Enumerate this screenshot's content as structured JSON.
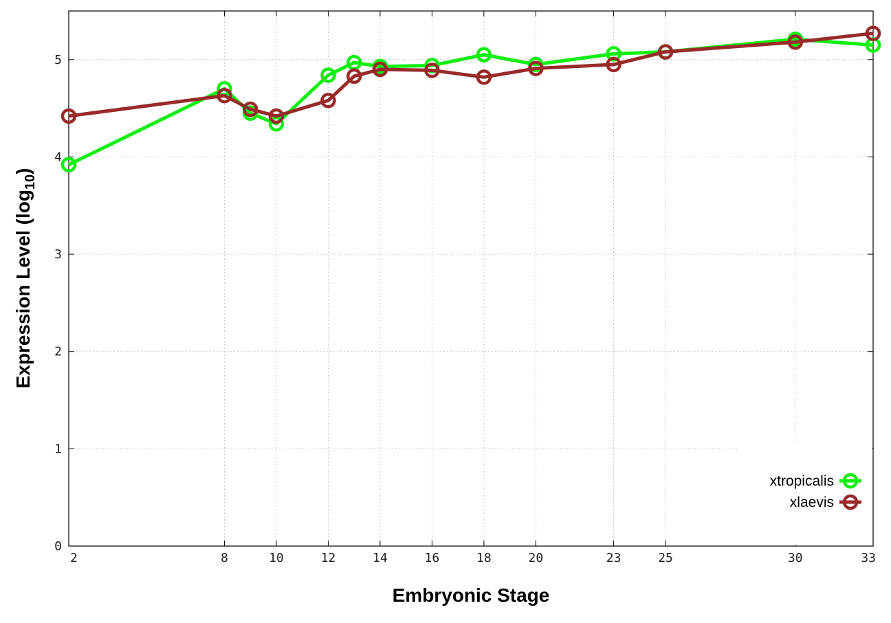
{
  "chart_data": {
    "type": "line",
    "title": "",
    "xlabel": "Embryonic Stage",
    "ylabel": "Expression Level (log",
    "ylabel_sub": "10",
    "ylabel_close": ")",
    "xlim": [
      2,
      33
    ],
    "ylim": [
      0,
      5.5
    ],
    "xticks": [
      2,
      8,
      10,
      12,
      14,
      16,
      18,
      20,
      23,
      25,
      30,
      33
    ],
    "xtick_labels": [
      "2",
      "8",
      "10",
      "12",
      "14",
      "16",
      "18",
      "20",
      "23",
      "25",
      "30",
      "33"
    ],
    "yticks": [
      0,
      1,
      2,
      3,
      4,
      5
    ],
    "ytick_labels": [
      "0",
      "1",
      "2",
      "3",
      "4",
      "5"
    ],
    "grid": true,
    "legend_position": "bottom-right",
    "series": [
      {
        "name": "xtropicalis",
        "color": "#11ee11",
        "x": [
          2,
          8,
          9,
          10,
          12,
          13,
          14,
          16,
          18,
          20,
          23,
          25,
          30,
          33
        ],
        "y": [
          3.92,
          4.7,
          4.45,
          4.34,
          4.84,
          4.97,
          4.93,
          4.94,
          5.05,
          4.95,
          5.06,
          5.08,
          5.21,
          5.15
        ]
      },
      {
        "name": "xlaevis",
        "color": "#992a2a",
        "x": [
          2,
          8,
          9,
          10,
          12,
          13,
          14,
          16,
          18,
          20,
          23,
          25,
          30,
          33
        ],
        "y": [
          4.42,
          4.63,
          4.49,
          4.42,
          4.58,
          4.83,
          4.9,
          4.89,
          4.82,
          4.91,
          4.95,
          5.08,
          5.18,
          5.27
        ]
      }
    ]
  }
}
